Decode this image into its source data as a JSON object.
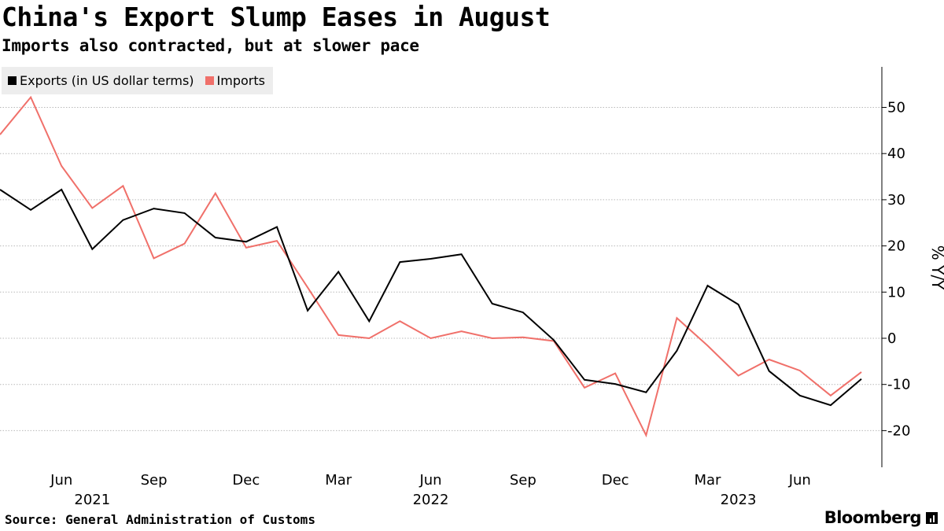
{
  "title": "China's Export Slump Eases in August",
  "subtitle": "Imports also contracted, but at slower pace",
  "source": "Source: General Administration of Customs",
  "brand": "Bloomberg",
  "chart_data": {
    "type": "line",
    "x": [
      "2021-04",
      "2021-05",
      "2021-06",
      "2021-07",
      "2021-08",
      "2021-09",
      "2021-10",
      "2021-11",
      "2021-12",
      "2022-01",
      "2022-02",
      "2022-03",
      "2022-04",
      "2022-05",
      "2022-06",
      "2022-07",
      "2022-08",
      "2022-09",
      "2022-10",
      "2022-11",
      "2022-12",
      "2023-01",
      "2023-02",
      "2023-03",
      "2023-04",
      "2023-05",
      "2023-06",
      "2023-07",
      "2023-08"
    ],
    "series": [
      {
        "name": "Exports (in US dollar terms)",
        "color": "#000000",
        "values": [
          32.2,
          27.8,
          32.2,
          19.3,
          25.6,
          28.1,
          27.1,
          21.8,
          20.9,
          24.1,
          6.0,
          14.4,
          3.7,
          16.5,
          17.2,
          18.2,
          7.5,
          5.6,
          -0.4,
          -9.0,
          -9.9,
          -11.7,
          -2.7,
          11.4,
          7.3,
          -7.1,
          -12.4,
          -14.5,
          -8.8
        ]
      },
      {
        "name": "Imports",
        "color": "#f0706a",
        "values": [
          44.1,
          52.2,
          37.3,
          28.2,
          33.0,
          17.3,
          20.5,
          31.4,
          19.6,
          21.1,
          11.0,
          0.7,
          0.0,
          3.7,
          0.0,
          1.5,
          0.0,
          0.2,
          -0.6,
          -10.7,
          -7.6,
          -21.0,
          4.4,
          -1.6,
          -8.1,
          -4.6,
          -7.0,
          -12.4,
          -7.3
        ]
      }
    ],
    "y_axis": {
      "label": "% Y/Y",
      "position": "right",
      "range": [
        -28,
        59
      ],
      "ticks": [
        50,
        40,
        30,
        20,
        10,
        0,
        -10,
        -20
      ]
    },
    "x_axis": {
      "month_ticks": [
        {
          "x": "2021-06",
          "label": "Jun"
        },
        {
          "x": "2021-09",
          "label": "Sep"
        },
        {
          "x": "2021-12",
          "label": "Dec"
        },
        {
          "x": "2022-03",
          "label": "Mar"
        },
        {
          "x": "2022-06",
          "label": "Jun"
        },
        {
          "x": "2022-09",
          "label": "Sep"
        },
        {
          "x": "2022-12",
          "label": "Dec"
        },
        {
          "x": "2023-03",
          "label": "Mar"
        },
        {
          "x": "2023-06",
          "label": "Jun"
        }
      ],
      "year_labels": [
        {
          "x": "2021-07",
          "label": "2021"
        },
        {
          "x": "2022-06",
          "label": "2022"
        },
        {
          "x": "2023-04",
          "label": "2023"
        }
      ]
    },
    "grid": "horizontal dotted",
    "legend": "top-left"
  }
}
